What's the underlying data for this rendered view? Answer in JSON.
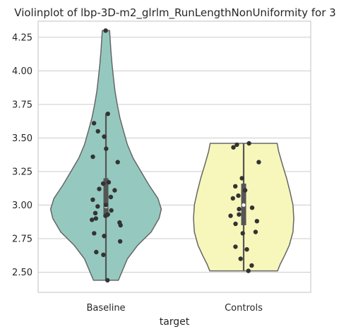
{
  "chart_data": {
    "type": "violin",
    "title": "Violinplot of lbp-3D-m2_glrlm_RunLengthNonUniformity for 3",
    "xlabel": "target",
    "ylabel": "",
    "categories": [
      "Baseline",
      "Controls"
    ],
    "ylim": [
      2.35,
      4.37
    ],
    "yticks": [
      2.5,
      2.75,
      3.0,
      3.25,
      3.5,
      3.75,
      4.0,
      4.25
    ],
    "ytick_labels": [
      "2.50",
      "2.75",
      "3.00",
      "3.25",
      "3.50",
      "3.75",
      "4.00",
      "4.25"
    ],
    "grid": true,
    "colors": {
      "Baseline": "#95c9bf",
      "Controls": "#f7f7bb",
      "outline": "#666666",
      "points": "#333333",
      "grid": "#cccccc",
      "frame": "#cccccc"
    },
    "series": [
      {
        "name": "Baseline",
        "min": 2.44,
        "max": 4.3,
        "q1": 2.91,
        "median": 2.99,
        "q3": 3.2,
        "whisker_low": 2.44,
        "whisker_high": 3.68,
        "density": [
          [
            2.44,
            0.55
          ],
          [
            2.5,
            0.7
          ],
          [
            2.6,
            0.95
          ],
          [
            2.7,
            1.4
          ],
          [
            2.8,
            2.0
          ],
          [
            2.9,
            2.35
          ],
          [
            2.97,
            2.45
          ],
          [
            3.05,
            2.3
          ],
          [
            3.15,
            1.9
          ],
          [
            3.25,
            1.55
          ],
          [
            3.35,
            1.2
          ],
          [
            3.45,
            0.95
          ],
          [
            3.55,
            0.78
          ],
          [
            3.65,
            0.62
          ],
          [
            3.75,
            0.5
          ],
          [
            3.85,
            0.4
          ],
          [
            3.95,
            0.33
          ],
          [
            4.05,
            0.27
          ],
          [
            4.15,
            0.22
          ],
          [
            4.25,
            0.18
          ],
          [
            4.3,
            0.16
          ]
        ],
        "points": [
          4.3,
          3.68,
          3.61,
          3.55,
          3.51,
          3.42,
          3.36,
          3.32,
          3.17,
          3.16,
          3.12,
          3.11,
          3.06,
          3.04,
          3.0,
          2.99,
          2.96,
          2.94,
          2.93,
          2.92,
          2.9,
          2.89,
          2.87,
          2.85,
          2.79,
          2.77,
          2.73,
          2.65,
          2.63,
          2.44
        ]
      },
      {
        "name": "Controls",
        "min": 2.51,
        "max": 3.46,
        "q1": 2.85,
        "median": 3.0,
        "q3": 3.16,
        "whisker_low": 2.51,
        "whisker_high": 3.46,
        "density": [
          [
            2.51,
            1.5
          ],
          [
            2.56,
            1.62
          ],
          [
            2.62,
            1.8
          ],
          [
            2.7,
            2.02
          ],
          [
            2.8,
            2.18
          ],
          [
            2.9,
            2.22
          ],
          [
            3.0,
            2.18
          ],
          [
            3.1,
            2.05
          ],
          [
            3.2,
            1.9
          ],
          [
            3.3,
            1.72
          ],
          [
            3.4,
            1.55
          ],
          [
            3.46,
            1.48
          ]
        ],
        "points": [
          3.46,
          3.45,
          3.43,
          3.32,
          3.2,
          3.14,
          3.11,
          3.07,
          3.05,
          2.98,
          2.97,
          2.93,
          2.92,
          2.88,
          2.86,
          2.8,
          2.79,
          2.69,
          2.67,
          2.6,
          2.55,
          2.51
        ]
      }
    ]
  }
}
